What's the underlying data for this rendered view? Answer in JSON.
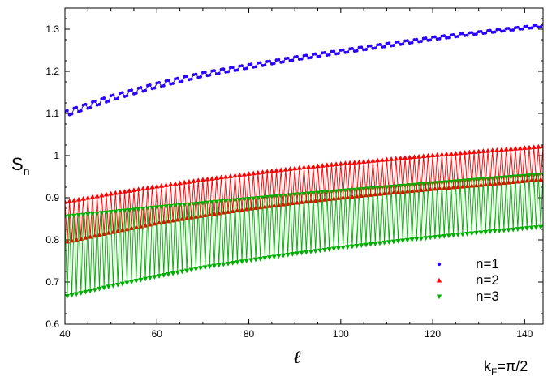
{
  "chart_data": {
    "type": "line",
    "xlabel": "ℓ",
    "ylabel": "S",
    "ylabel_sub": "n",
    "xlim": [
      40,
      144
    ],
    "ylim": [
      0.6,
      1.35
    ],
    "x_ticks": [
      40,
      60,
      80,
      100,
      120,
      140
    ],
    "y_ticks": [
      0.6,
      0.7,
      0.8,
      0.9,
      1.0,
      1.1,
      1.2,
      1.3
    ],
    "x_tick_labels": [
      "40",
      "60",
      "80",
      "100",
      "120",
      "140"
    ],
    "y_tick_labels": [
      "0.6",
      "0.7",
      "0.8",
      "0.9",
      "1",
      "1.1",
      "1.2",
      "1.3"
    ],
    "legend_position": "lower-right",
    "annotation": {
      "k": "k",
      "sub": "F",
      "value": "=π/2"
    },
    "series": [
      {
        "name": "n=1",
        "marker": "circle",
        "color": "#2a00ff",
        "envelope": {
          "ell": [
            40,
            50,
            60,
            70,
            80,
            90,
            100,
            110,
            120,
            130,
            144
          ],
          "upper": [
            1.105,
            1.142,
            1.172,
            1.197,
            1.216,
            1.234,
            1.25,
            1.266,
            1.281,
            1.294,
            1.311
          ],
          "lower": [
            1.093,
            1.131,
            1.162,
            1.188,
            1.208,
            1.227,
            1.243,
            1.259,
            1.275,
            1.289,
            1.306
          ]
        }
      },
      {
        "name": "n=2",
        "marker": "triangle-up",
        "color": "#ff0000",
        "envelope": {
          "ell": [
            40,
            50,
            60,
            70,
            80,
            90,
            100,
            110,
            120,
            130,
            144
          ],
          "upper": [
            0.89,
            0.91,
            0.927,
            0.943,
            0.957,
            0.97,
            0.981,
            0.991,
            1.001,
            1.01,
            1.022
          ],
          "lower": [
            0.795,
            0.818,
            0.84,
            0.858,
            0.874,
            0.888,
            0.9,
            0.911,
            0.921,
            0.93,
            0.944
          ]
        }
      },
      {
        "name": "n=3",
        "marker": "triangle-down",
        "color": "#00b000",
        "envelope": {
          "ell": [
            40,
            50,
            60,
            70,
            80,
            90,
            100,
            110,
            120,
            130,
            144
          ],
          "upper": [
            0.855,
            0.866,
            0.877,
            0.887,
            0.897,
            0.907,
            0.916,
            0.925,
            0.934,
            0.943,
            0.955
          ],
          "lower": [
            0.665,
            0.69,
            0.713,
            0.734,
            0.751,
            0.767,
            0.781,
            0.794,
            0.806,
            0.817,
            0.831
          ]
        }
      }
    ]
  }
}
